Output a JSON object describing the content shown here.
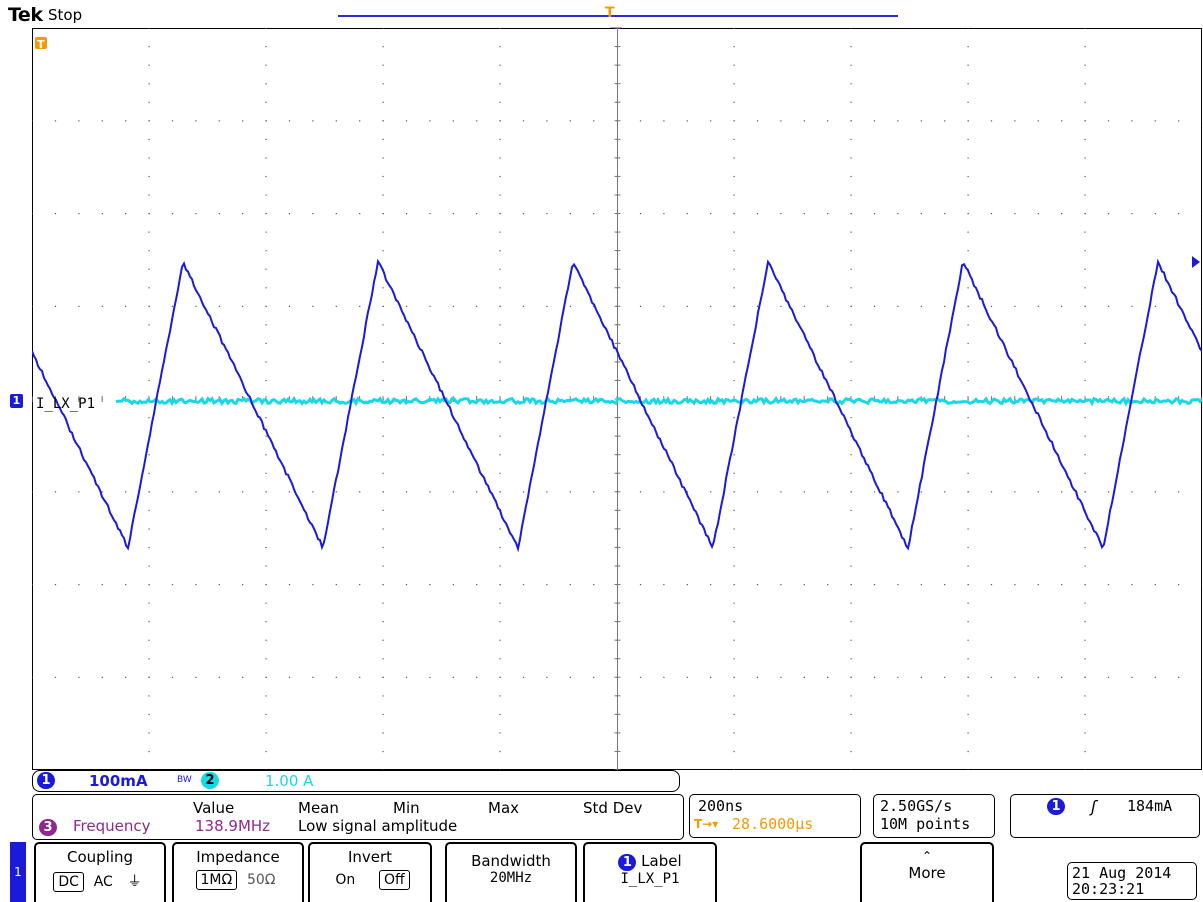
{
  "header": {
    "brand": "Tek",
    "state": "Stop",
    "trigger_position_marker": "T"
  },
  "waveform": {
    "ground_marker_label": "T",
    "channel_marker": "1",
    "trace_label": "I_LX_P1",
    "ch1_color": "#1a1adb",
    "ch2_color": "#19d8e6",
    "trigger_color": "#f59a00"
  },
  "channel_bar": {
    "ch1_number": "1",
    "ch1_scale": "100mA",
    "bw_indicator": "BW",
    "ch2_number": "2",
    "ch2_scale": "1.00 A"
  },
  "measurements": {
    "headers": [
      "Value",
      "Mean",
      "Min",
      "Max",
      "Std Dev"
    ],
    "row": {
      "channel": "3",
      "name": "Frequency",
      "value": "138.9MHz",
      "status": "Low signal amplitude"
    }
  },
  "timebase": {
    "scale": "200ns",
    "delay": "28.6000µs",
    "sample_rate": "2.50GS/s",
    "record_length": "10M points"
  },
  "trigger": {
    "channel": "1",
    "slope": "rising",
    "level": "184mA"
  },
  "menu": {
    "side_channel": "1",
    "coupling": {
      "title": "Coupling",
      "options": [
        "DC",
        "AC",
        "⏚"
      ],
      "selected": "DC"
    },
    "impedance": {
      "title": "Impedance",
      "options": [
        "1MΩ",
        "50Ω"
      ],
      "selected": "1MΩ"
    },
    "invert": {
      "title": "Invert",
      "options": [
        "On",
        "Off"
      ],
      "selected": "Off"
    },
    "bandwidth": {
      "title": "Bandwidth",
      "value": "20MHz"
    },
    "label": {
      "channel": "1",
      "title": "Label",
      "value": "I_LX_P1"
    },
    "more": {
      "title": "More"
    }
  },
  "datetime": {
    "date": "21 Aug 2014",
    "time": "20:23:21"
  }
}
